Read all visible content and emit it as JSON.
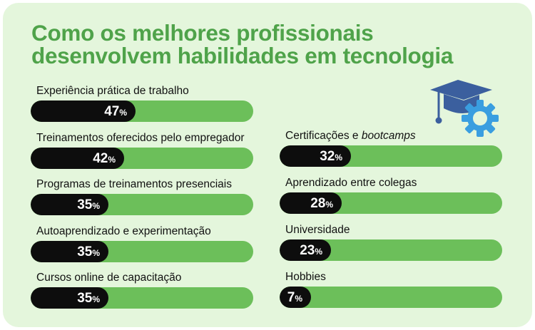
{
  "title": {
    "line1": "Como os melhores profissionais",
    "line2": "desenvolvem habilidades em tecnologia"
  },
  "icons": {
    "illustration": "graduation-cap-gear-icon"
  },
  "colors": {
    "background": "#e4f6dc",
    "title": "#4fa34a",
    "track": "#6cbf5a",
    "fill": "#0d0d0d",
    "icon_dark": "#3b5f9e",
    "icon_light": "#3a9ee0"
  },
  "chart_data": {
    "type": "bar",
    "orientation": "horizontal",
    "unit": "%",
    "xlim": [
      0,
      100
    ],
    "grid": false,
    "legend": "none",
    "columns": [
      {
        "bars": [
          {
            "label": "Experiência prática de trabalho",
            "value": 47,
            "value_text": "47",
            "unit_text": "%"
          },
          {
            "label": "Treinamentos oferecidos pelo empregador",
            "value": 42,
            "value_text": "42",
            "unit_text": "%"
          },
          {
            "label": "Programas de treinamentos presenciais",
            "value": 35,
            "value_text": "35",
            "unit_text": "%"
          },
          {
            "label": "Autoaprendizado e experimentação",
            "value": 35,
            "value_text": "35",
            "unit_text": "%"
          },
          {
            "label": "Cursos online de capacitação",
            "value": 35,
            "value_text": "35",
            "unit_text": "%"
          }
        ]
      },
      {
        "bars": [
          {
            "label": "Certificações e ",
            "label_italic": "bootcamps",
            "value": 32,
            "value_text": "32",
            "unit_text": "%"
          },
          {
            "label": "Aprendizado entre colegas",
            "value": 28,
            "value_text": "28",
            "unit_text": "%"
          },
          {
            "label": "Universidade",
            "value": 23,
            "value_text": "23",
            "unit_text": "%"
          },
          {
            "label": "Hobbies",
            "value": 7,
            "value_text": "7",
            "unit_text": "%"
          }
        ]
      }
    ]
  }
}
